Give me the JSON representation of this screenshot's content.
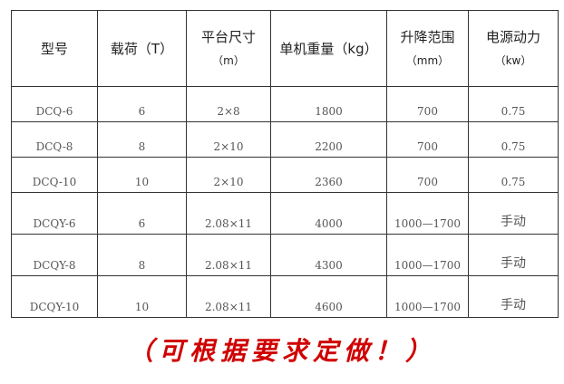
{
  "headers": [
    {
      "label": "型号",
      "unit": ""
    },
    {
      "label": "载荷（T）",
      "unit": ""
    },
    {
      "label": "平台尺寸",
      "unit": "（m）"
    },
    {
      "label": "单机重量（kg）",
      "unit": ""
    },
    {
      "label": "升降范围",
      "unit": "（mm）"
    },
    {
      "label": "电源动力",
      "unit": "（kw）"
    }
  ],
  "rows": [
    [
      "DCQ-6",
      "6",
      "2×8",
      "1800",
      "700",
      "0.75"
    ],
    [
      "DCQ-8",
      "8",
      "2×10",
      "2200",
      "700",
      "0.75"
    ],
    [
      "DCQ-10",
      "10",
      "2×10",
      "2360",
      "700",
      "0.75"
    ],
    [
      "DCQY-6",
      "6",
      "2.08×11",
      "4000",
      "1000—1700",
      "手动"
    ],
    [
      "DCQY-8",
      "8",
      "2.08×11",
      "4300",
      "1000—1700",
      "手动"
    ],
    [
      "DCQY-10",
      "10",
      "2.08×11",
      "4600",
      "1000—1700",
      "手动"
    ]
  ],
  "note": "（可根据要求定做！）",
  "note_color": "#d00000"
}
